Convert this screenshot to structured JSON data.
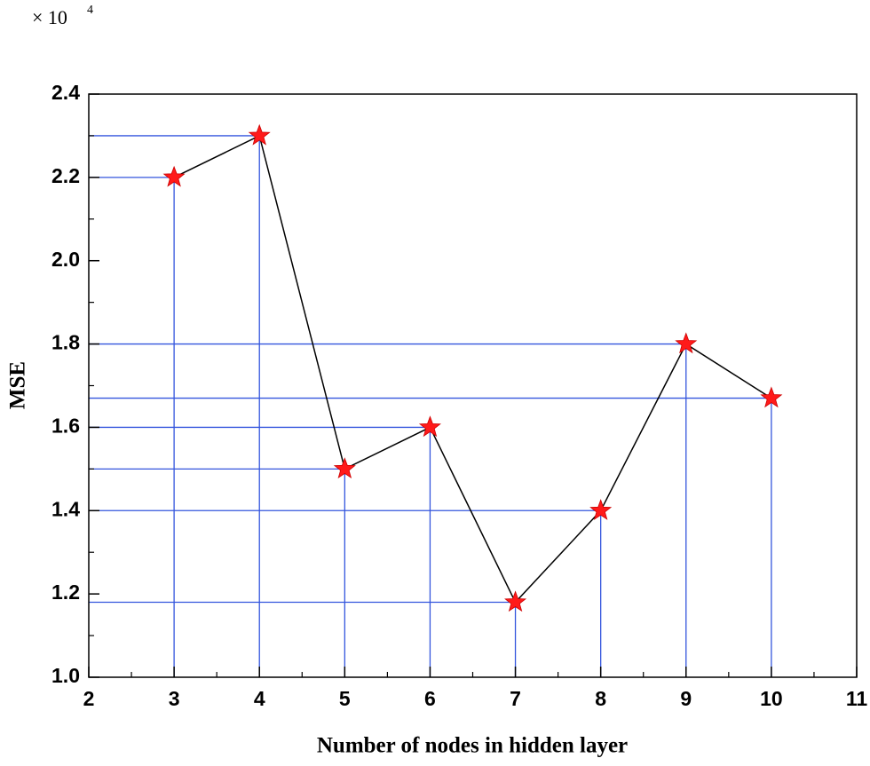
{
  "chart_data": {
    "type": "line",
    "x_label": "Number of nodes in hidden layer",
    "y_label": "MSE",
    "y_scale_label": "× 10",
    "y_scale_exponent": "4",
    "x": [
      3,
      4,
      5,
      6,
      7,
      8,
      9,
      10
    ],
    "values": [
      2.2,
      2.3,
      1.5,
      1.6,
      1.18,
      1.4,
      1.8,
      1.67
    ],
    "line_color": "#000000",
    "marker_color": "#ff1a1a",
    "drop_line_color": "#3355dd",
    "xlim": [
      2,
      11
    ],
    "xticks": [
      2,
      3,
      4,
      5,
      6,
      7,
      8,
      9,
      10,
      11
    ],
    "ylim": [
      1.0,
      2.4
    ],
    "yticks": [
      {
        "value": 1.0,
        "label": "1.0"
      },
      1.2,
      1.4,
      1.6,
      1.8,
      {
        "value": 2.0,
        "label": "2.0"
      },
      2.2,
      2.4
    ]
  }
}
